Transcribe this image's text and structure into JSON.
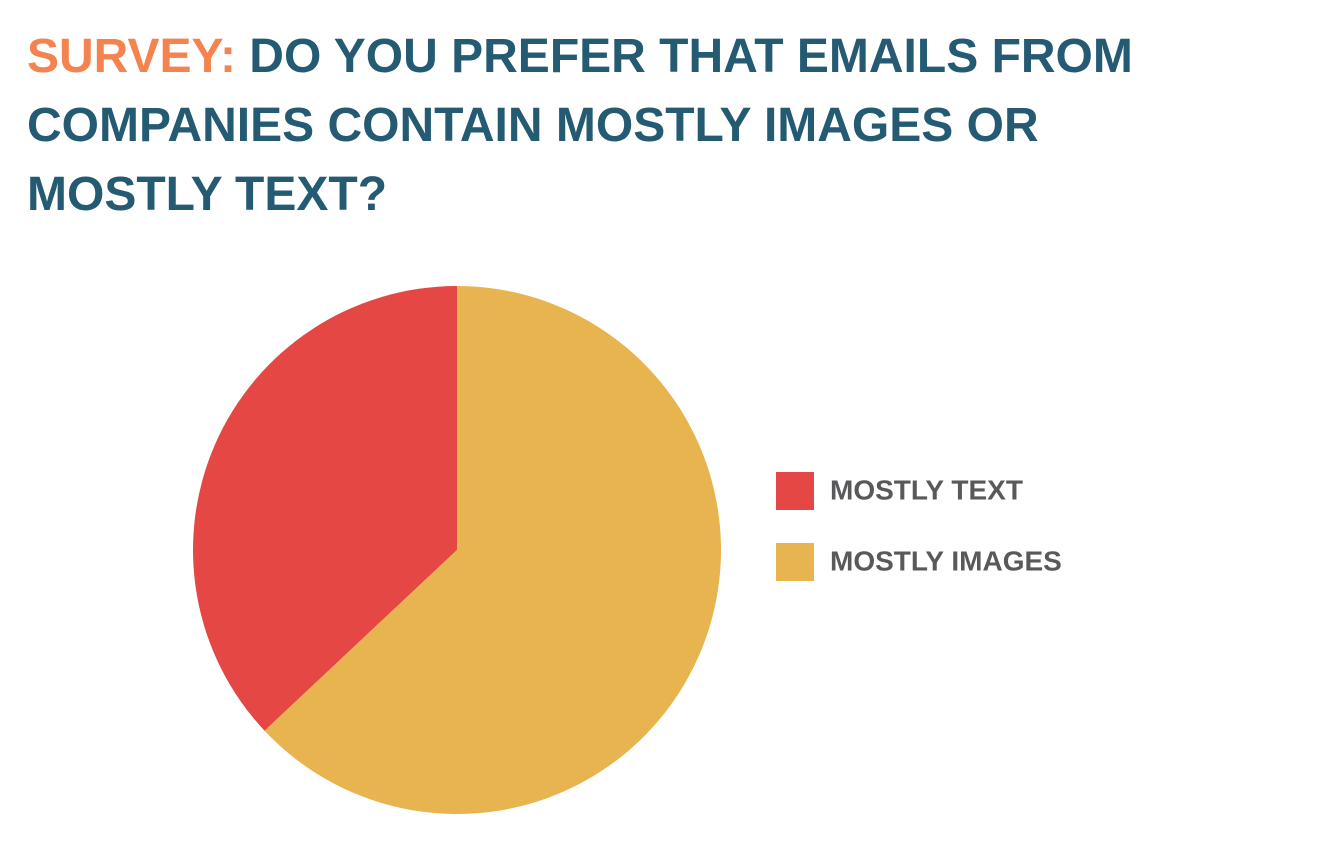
{
  "chart_data": {
    "type": "pie",
    "title_prefix": "SURVEY:",
    "title": "DO YOU PREFER THAT EMAILS FROM COMPANIES CONTAIN MOSTLY IMAGES OR MOSTLY TEXT?",
    "categories": [
      "MOSTLY TEXT",
      "MOSTLY IMAGES"
    ],
    "values": [
      37,
      63
    ],
    "colors": [
      "#e54744",
      "#e8b44f"
    ],
    "legend": "right"
  }
}
